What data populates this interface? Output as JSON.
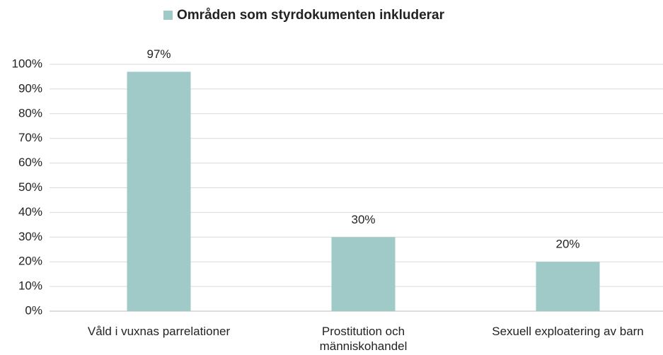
{
  "chart_data": {
    "type": "bar",
    "legend": "Områden som styrdokumenten inkluderar",
    "categories": [
      "Våld i vuxnas parrelationer",
      "Prostitution och människohandel",
      "Sexuell exploatering av barn"
    ],
    "values": [
      97,
      30,
      20
    ],
    "value_labels": [
      "97%",
      "30%",
      "20%"
    ],
    "color": "#a0cac8",
    "ylim": [
      0,
      100
    ],
    "yticks": [
      {
        "value": 0,
        "label": "0%"
      },
      {
        "value": 10,
        "label": "10%"
      },
      {
        "value": 20,
        "label": "20%"
      },
      {
        "value": 30,
        "label": "30%"
      },
      {
        "value": 40,
        "label": "40%"
      },
      {
        "value": 50,
        "label": "50%"
      },
      {
        "value": 60,
        "label": "60%"
      },
      {
        "value": 70,
        "label": "70%"
      },
      {
        "value": 80,
        "label": "80%"
      },
      {
        "value": 90,
        "label": "90%"
      },
      {
        "value": 100,
        "label": "100%"
      }
    ],
    "grid": true
  }
}
